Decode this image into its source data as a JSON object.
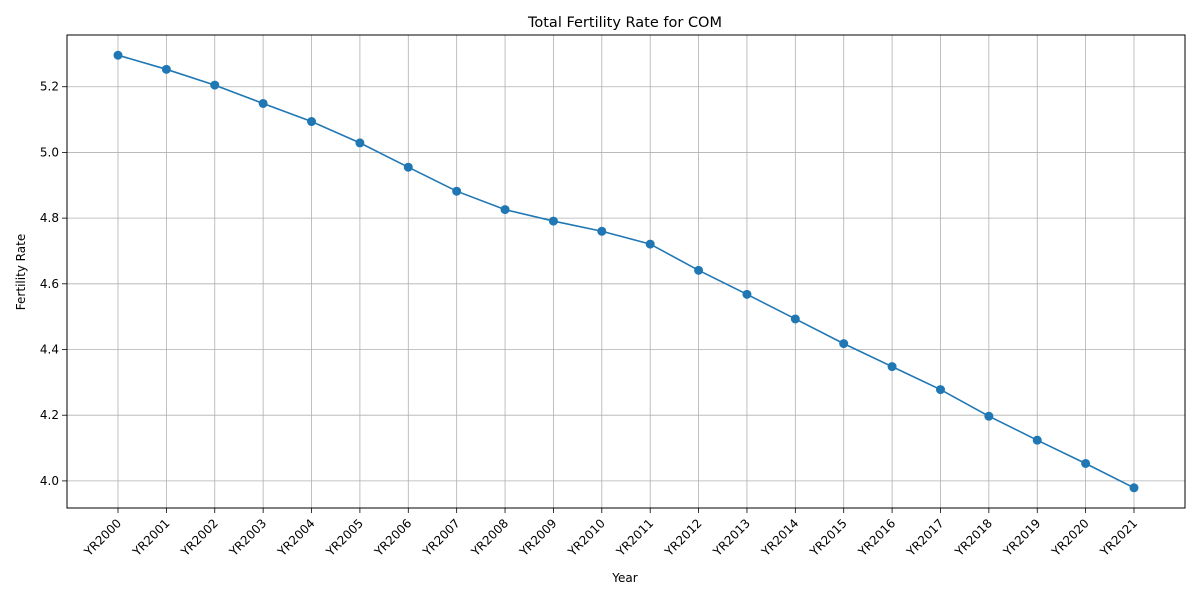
{
  "chart_data": {
    "type": "line",
    "title": "Total Fertility Rate for COM",
    "xlabel": "Year",
    "ylabel": "Fertility Rate",
    "categories": [
      "YR2000",
      "YR2001",
      "YR2002",
      "YR2003",
      "YR2004",
      "YR2005",
      "YR2006",
      "YR2007",
      "YR2008",
      "YR2009",
      "YR2010",
      "YR2011",
      "YR2012",
      "YR2013",
      "YR2014",
      "YR2015",
      "YR2016",
      "YR2017",
      "YR2018",
      "YR2019",
      "YR2020",
      "YR2021"
    ],
    "series": [
      {
        "values": [
          5.296,
          5.253,
          5.205,
          5.149,
          5.094,
          5.029,
          4.955,
          4.882,
          4.826,
          4.791,
          4.76,
          4.721,
          4.641,
          4.568,
          4.493,
          4.418,
          4.348,
          4.278,
          4.197,
          4.124,
          4.053,
          3.979
        ],
        "color": "#1f77b4",
        "marker": "circle"
      }
    ],
    "ylim": [
      3.9175,
      5.3575
    ],
    "yticks": [
      4.0,
      4.2,
      4.4,
      4.6,
      4.8,
      5.0,
      5.2
    ],
    "grid": true,
    "grid_color": "#b0b0b0"
  }
}
